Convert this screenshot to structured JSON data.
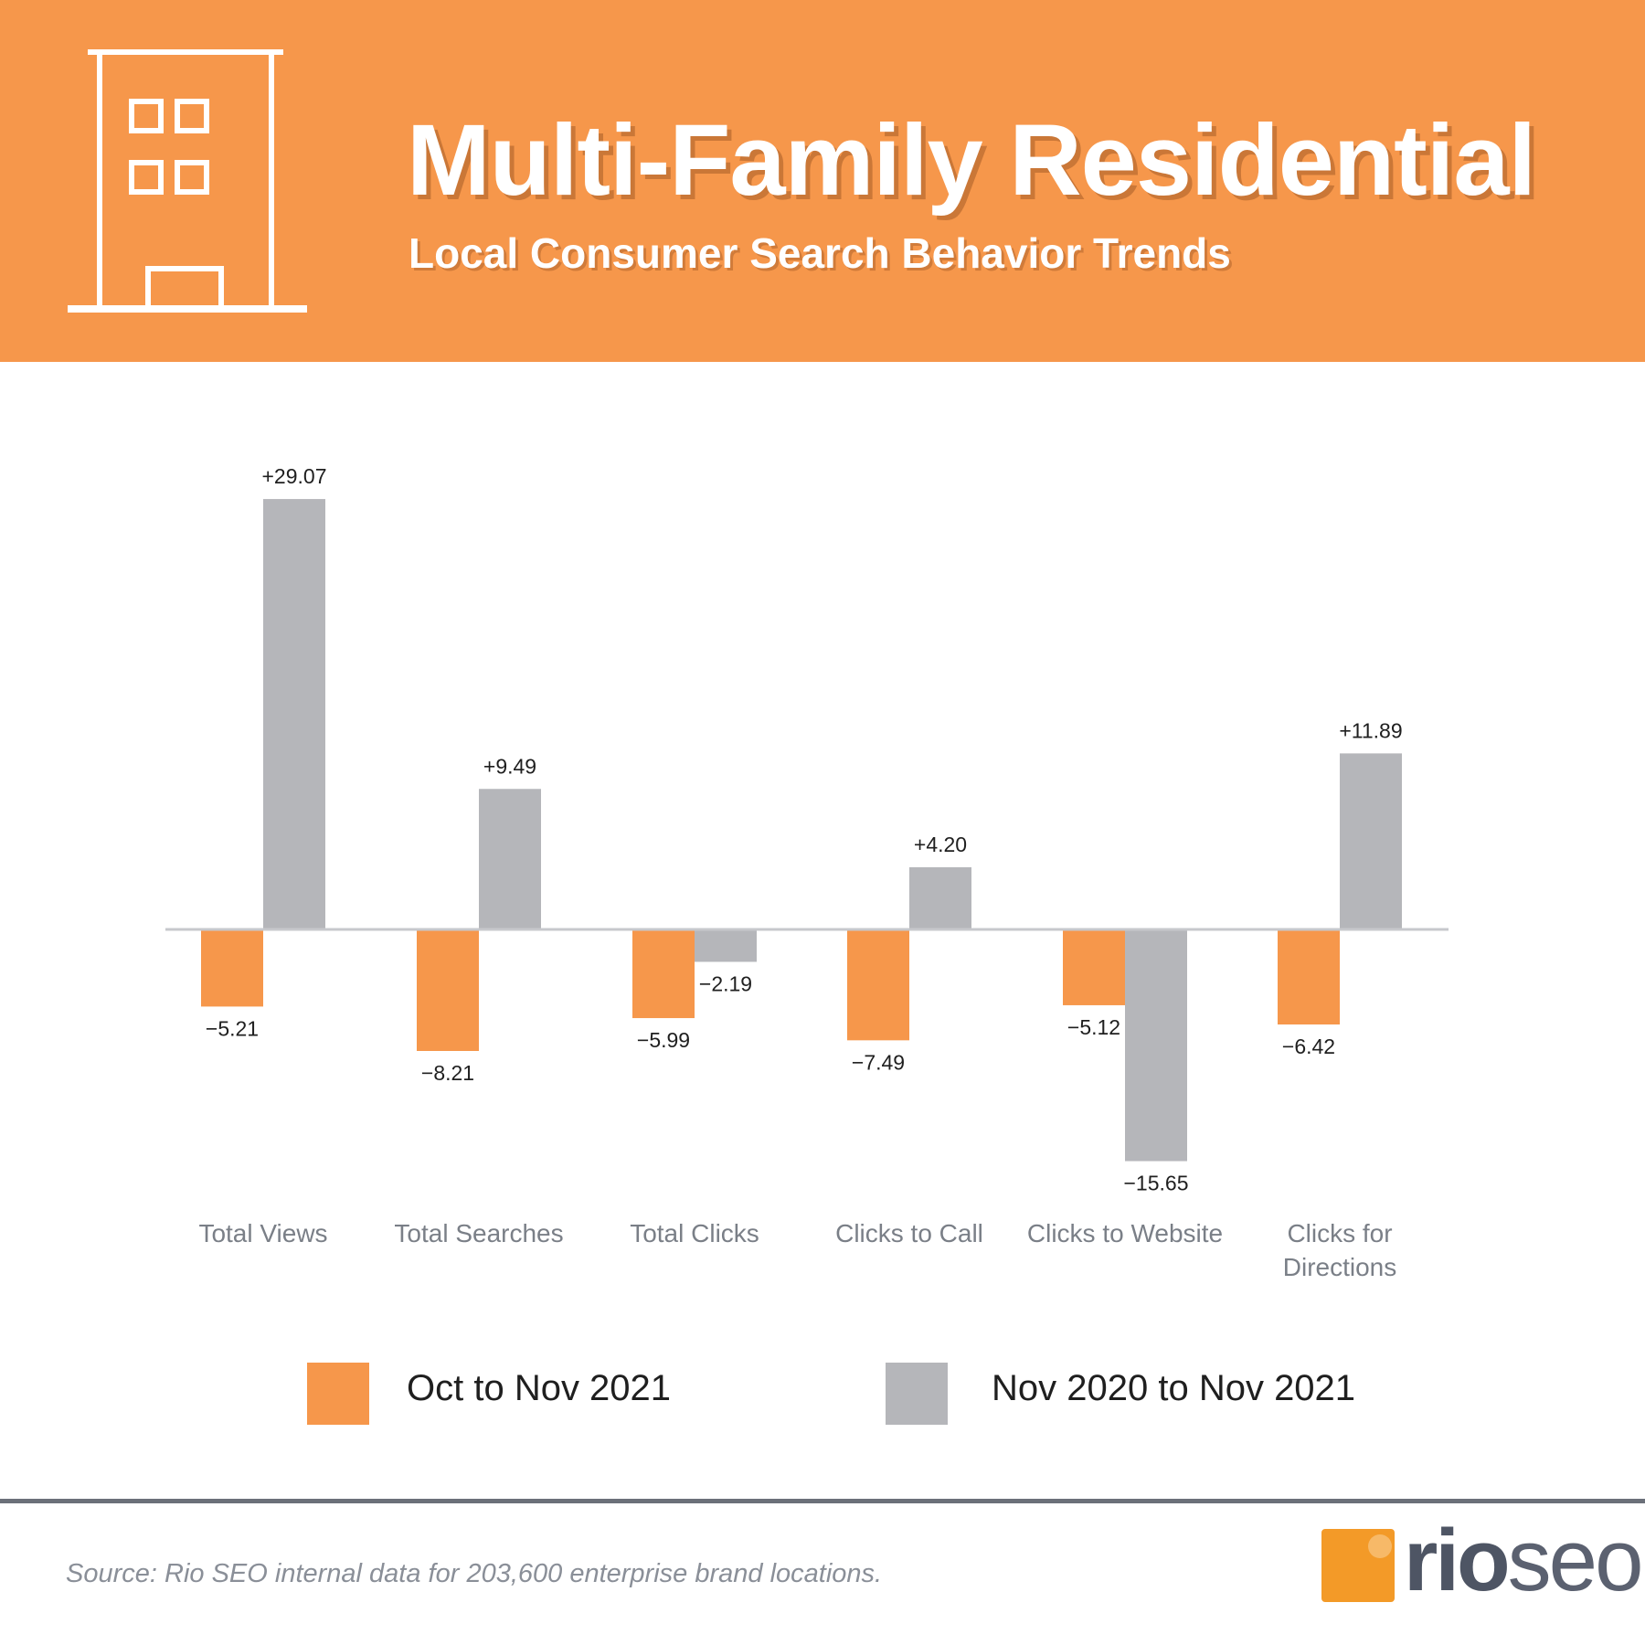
{
  "header": {
    "title": "Multi-Family Residential",
    "subtitle": "Local Consumer Search Behavior Trends",
    "icon": "building-icon"
  },
  "colors": {
    "header_bg": "#f6974b",
    "series_1": "#f6974b",
    "series_2": "#b5b6ba",
    "text": "#1f1f1f",
    "axis_label": "#7a7f87"
  },
  "chart_data": {
    "type": "bar",
    "title": "",
    "xlabel": "",
    "ylabel": "",
    "grid": false,
    "legend_position": "bottom",
    "categories": [
      "Total Views",
      "Total Searches",
      "Total Clicks",
      "Clicks to Call",
      "Clicks to Website",
      "Clicks for Directions"
    ],
    "series": [
      {
        "name": "Oct to Nov 2021",
        "values": [
          -5.21,
          -8.21,
          -5.99,
          -7.49,
          -5.12,
          -6.42
        ],
        "labels": [
          "−5.21",
          "−8.21",
          "−5.99",
          "−7.49",
          "−5.12",
          "−6.42"
        ]
      },
      {
        "name": "Nov 2020 to Nov 2021",
        "values": [
          29.07,
          9.49,
          -2.19,
          4.2,
          -15.65,
          11.89
        ],
        "labels": [
          "+29.07",
          "+9.49",
          "−2.19",
          "+4.20",
          "−15.65",
          "+11.89"
        ]
      }
    ],
    "ylim": [
      -17,
      30
    ]
  },
  "legend": [
    {
      "label": "Oct to Nov 2021"
    },
    {
      "label": "Nov 2020 to Nov 2021"
    }
  ],
  "footer": {
    "source": "Source: Rio SEO internal data for 203,600 enterprise brand locations.",
    "logo_part1": "rio",
    "logo_part2": "seo"
  }
}
